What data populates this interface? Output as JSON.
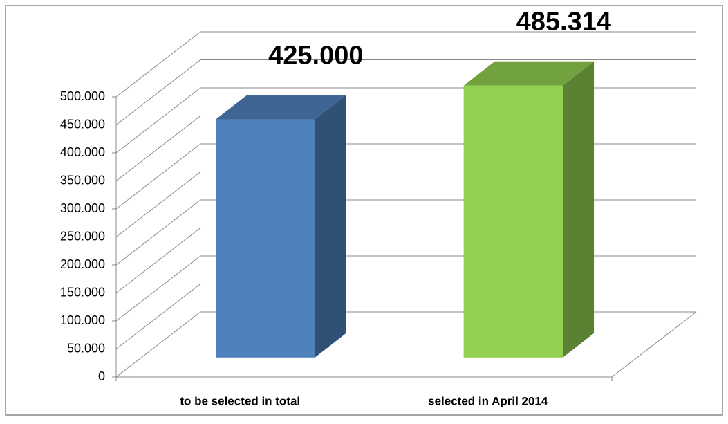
{
  "chart_data": {
    "type": "bar3d",
    "categories": [
      "to be selected in total",
      "selected in April 2014"
    ],
    "values": [
      425000,
      485314
    ],
    "value_labels": [
      "425.000",
      "485.314"
    ],
    "colors": [
      "#4f81bd",
      "#92d050"
    ],
    "ylim": [
      0,
      500000
    ],
    "yticks": [
      0,
      {
        "value": 50000,
        "label": "50.000"
      },
      {
        "value": 100000,
        "label": "100.000"
      },
      {
        "value": 150000,
        "label": "150.000"
      },
      {
        "value": 200000,
        "label": "200.000"
      },
      {
        "value": 250000,
        "label": "250.000"
      },
      {
        "value": 300000,
        "label": "300.000"
      },
      {
        "value": 350000,
        "label": "350.000"
      },
      {
        "value": 400000,
        "label": "400.000"
      },
      {
        "value": 450000,
        "label": "450.000"
      },
      {
        "value": 500000,
        "label": "500.000"
      }
    ],
    "grid": true
  }
}
